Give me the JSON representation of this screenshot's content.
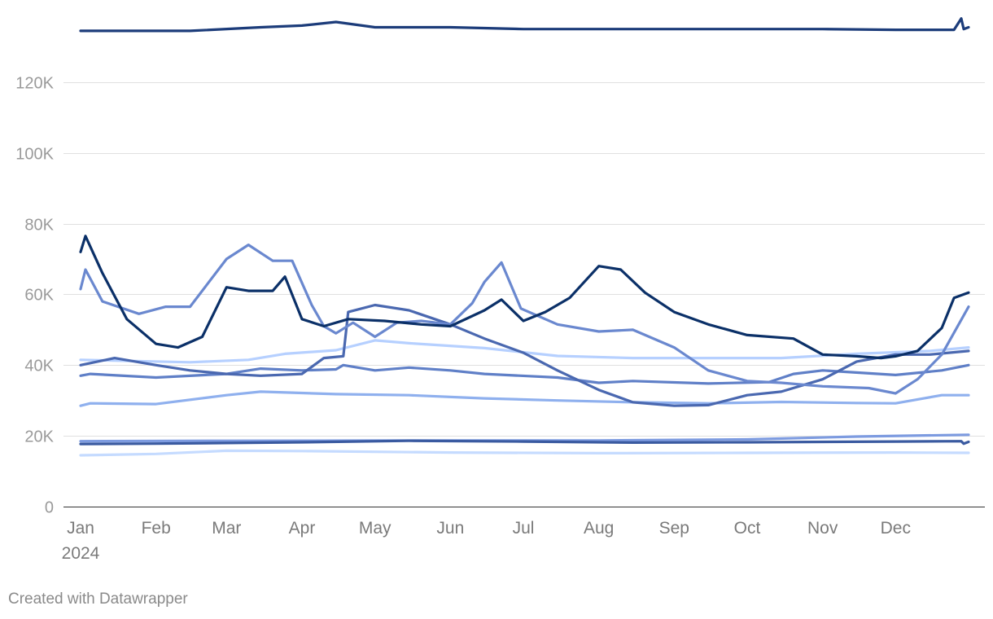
{
  "footer": {
    "credit": "Created with Datawrapper"
  },
  "chart_data": {
    "type": "line",
    "title": "",
    "xlabel": "",
    "ylabel": "",
    "x_range": [
      "2024-01-01",
      "2024-12-31"
    ],
    "ylim": [
      0,
      140000
    ],
    "y_ticks": [
      0,
      20000,
      40000,
      60000,
      80000,
      100000,
      120000
    ],
    "y_tick_labels": [
      "0",
      "20K",
      "40K",
      "60K",
      "80K",
      "100K",
      "120K"
    ],
    "x_ticks": [
      "2024-01-01",
      "2024-02-01",
      "2024-03-01",
      "2024-04-01",
      "2024-05-01",
      "2024-06-01",
      "2024-07-01",
      "2024-08-01",
      "2024-09-01",
      "2024-10-01",
      "2024-11-01",
      "2024-12-01"
    ],
    "x_tick_labels": [
      "Jan",
      "Feb",
      "Mar",
      "Apr",
      "May",
      "Jun",
      "Jul",
      "Aug",
      "Sep",
      "Oct",
      "Nov",
      "Dec"
    ],
    "x_year_label": "2024",
    "grid": true,
    "legend": "none",
    "series": [
      {
        "color": "#8fb0ee",
        "points": [
          [
            "2024-01-01",
            28500
          ],
          [
            "2024-01-05",
            29200
          ],
          [
            "2024-02-01",
            29000
          ],
          [
            "2024-03-01",
            31500
          ],
          [
            "2024-03-15",
            32500
          ],
          [
            "2024-04-15",
            31800
          ],
          [
            "2024-05-15",
            31500
          ],
          [
            "2024-06-15",
            30600
          ],
          [
            "2024-07-15",
            30000
          ],
          [
            "2024-08-15",
            29500
          ],
          [
            "2024-09-15",
            29200
          ],
          [
            "2024-10-15",
            29600
          ],
          [
            "2024-11-15",
            29300
          ],
          [
            "2024-12-01",
            29200
          ],
          [
            "2024-12-20",
            31500
          ],
          [
            "2024-12-31",
            31500
          ]
        ]
      },
      {
        "color": "#c5dbff",
        "points": [
          [
            "2024-01-01",
            14500
          ],
          [
            "2024-02-01",
            14900
          ],
          [
            "2024-03-01",
            15800
          ],
          [
            "2024-04-01",
            15700
          ],
          [
            "2024-06-01",
            15300
          ],
          [
            "2024-08-01",
            15100
          ],
          [
            "2024-10-01",
            15200
          ],
          [
            "2024-12-01",
            15300
          ],
          [
            "2024-12-31",
            15200
          ]
        ]
      },
      {
        "color": "#7d9be0",
        "points": [
          [
            "2024-01-01",
            18500
          ],
          [
            "2024-03-01",
            18600
          ],
          [
            "2024-06-01",
            18700
          ],
          [
            "2024-08-01",
            18700
          ],
          [
            "2024-10-01",
            19000
          ],
          [
            "2024-11-15",
            19800
          ],
          [
            "2024-12-31",
            20300
          ]
        ]
      },
      {
        "color": "#3a5aa0",
        "points": [
          [
            "2024-01-01",
            17700
          ],
          [
            "2024-02-01",
            17800
          ],
          [
            "2024-04-01",
            18200
          ],
          [
            "2024-05-15",
            18600
          ],
          [
            "2024-07-01",
            18400
          ],
          [
            "2024-08-15",
            18100
          ],
          [
            "2024-10-01",
            18200
          ],
          [
            "2024-12-01",
            18400
          ],
          [
            "2024-12-28",
            18500
          ],
          [
            "2024-12-29",
            17800
          ],
          [
            "2024-12-31",
            18300
          ]
        ]
      },
      {
        "color": "#b6d0ff",
        "points": [
          [
            "2024-01-01",
            41500
          ],
          [
            "2024-02-15",
            40800
          ],
          [
            "2024-03-10",
            41500
          ],
          [
            "2024-03-25",
            43200
          ],
          [
            "2024-04-15",
            44200
          ],
          [
            "2024-05-01",
            47000
          ],
          [
            "2024-05-15",
            46200
          ],
          [
            "2024-06-15",
            44800
          ],
          [
            "2024-07-15",
            42600
          ],
          [
            "2024-08-15",
            42000
          ],
          [
            "2024-09-15",
            42000
          ],
          [
            "2024-10-15",
            42000
          ],
          [
            "2024-11-15",
            43200
          ],
          [
            "2024-12-15",
            44000
          ],
          [
            "2024-12-31",
            45000
          ]
        ]
      },
      {
        "color": "#5f7fc7",
        "points": [
          [
            "2024-01-01",
            37000
          ],
          [
            "2024-01-05",
            37500
          ],
          [
            "2024-02-01",
            36500
          ],
          [
            "2024-03-01",
            37500
          ],
          [
            "2024-03-15",
            39000
          ],
          [
            "2024-04-01",
            38500
          ],
          [
            "2024-04-15",
            38800
          ],
          [
            "2024-04-18",
            40000
          ],
          [
            "2024-05-01",
            38500
          ],
          [
            "2024-05-15",
            39300
          ],
          [
            "2024-06-01",
            38500
          ],
          [
            "2024-06-15",
            37500
          ],
          [
            "2024-07-15",
            36500
          ],
          [
            "2024-08-01",
            35000
          ],
          [
            "2024-08-15",
            35500
          ],
          [
            "2024-09-15",
            34800
          ],
          [
            "2024-10-10",
            35200
          ],
          [
            "2024-10-20",
            37500
          ],
          [
            "2024-11-01",
            38500
          ],
          [
            "2024-12-01",
            37200
          ],
          [
            "2024-12-20",
            38500
          ],
          [
            "2024-12-31",
            40000
          ]
        ]
      },
      {
        "color": "#4a68b0",
        "points": [
          [
            "2024-01-01",
            40000
          ],
          [
            "2024-01-15",
            42000
          ],
          [
            "2024-02-01",
            40000
          ],
          [
            "2024-02-15",
            38500
          ],
          [
            "2024-03-01",
            37500
          ],
          [
            "2024-03-15",
            37000
          ],
          [
            "2024-04-01",
            37500
          ],
          [
            "2024-04-10",
            42000
          ],
          [
            "2024-04-18",
            42500
          ],
          [
            "2024-04-20",
            55000
          ],
          [
            "2024-05-01",
            57000
          ],
          [
            "2024-05-15",
            55500
          ],
          [
            "2024-06-01",
            51500
          ],
          [
            "2024-06-15",
            47500
          ],
          [
            "2024-07-01",
            43500
          ],
          [
            "2024-07-15",
            38500
          ],
          [
            "2024-08-01",
            33000
          ],
          [
            "2024-08-15",
            29500
          ],
          [
            "2024-09-01",
            28500
          ],
          [
            "2024-09-15",
            28700
          ],
          [
            "2024-10-01",
            31500
          ],
          [
            "2024-10-15",
            32500
          ],
          [
            "2024-11-01",
            36000
          ],
          [
            "2024-11-15",
            41000
          ],
          [
            "2024-12-01",
            43000
          ],
          [
            "2024-12-15",
            43000
          ],
          [
            "2024-12-31",
            44000
          ]
        ]
      },
      {
        "color": "#6a88cf",
        "points": [
          [
            "2024-01-01",
            61500
          ],
          [
            "2024-01-03",
            67000
          ],
          [
            "2024-01-10",
            58000
          ],
          [
            "2024-01-25",
            54500
          ],
          [
            "2024-02-05",
            56500
          ],
          [
            "2024-02-15",
            56500
          ],
          [
            "2024-03-01",
            70000
          ],
          [
            "2024-03-10",
            74000
          ],
          [
            "2024-03-20",
            69500
          ],
          [
            "2024-03-28",
            69500
          ],
          [
            "2024-04-05",
            57000
          ],
          [
            "2024-04-10",
            51000
          ],
          [
            "2024-04-15",
            49000
          ],
          [
            "2024-04-22",
            52000
          ],
          [
            "2024-05-01",
            48000
          ],
          [
            "2024-05-10",
            52000
          ],
          [
            "2024-05-20",
            52500
          ],
          [
            "2024-06-01",
            51500
          ],
          [
            "2024-06-10",
            57500
          ],
          [
            "2024-06-15",
            63500
          ],
          [
            "2024-06-22",
            69000
          ],
          [
            "2024-06-30",
            56000
          ],
          [
            "2024-07-15",
            51500
          ],
          [
            "2024-08-01",
            49500
          ],
          [
            "2024-08-15",
            50000
          ],
          [
            "2024-09-01",
            45000
          ],
          [
            "2024-09-15",
            38500
          ],
          [
            "2024-10-01",
            35500
          ],
          [
            "2024-10-15",
            35000
          ],
          [
            "2024-11-01",
            34000
          ],
          [
            "2024-11-20",
            33500
          ],
          [
            "2024-12-01",
            32000
          ],
          [
            "2024-12-10",
            36000
          ],
          [
            "2024-12-20",
            43000
          ],
          [
            "2024-12-31",
            56500
          ]
        ]
      },
      {
        "color": "#0b3068",
        "points": [
          [
            "2024-01-01",
            72000
          ],
          [
            "2024-01-03",
            76500
          ],
          [
            "2024-01-10",
            66000
          ],
          [
            "2024-01-20",
            53000
          ],
          [
            "2024-02-01",
            46000
          ],
          [
            "2024-02-10",
            45000
          ],
          [
            "2024-02-20",
            48000
          ],
          [
            "2024-03-01",
            62000
          ],
          [
            "2024-03-10",
            61000
          ],
          [
            "2024-03-20",
            61000
          ],
          [
            "2024-03-25",
            65000
          ],
          [
            "2024-04-01",
            53000
          ],
          [
            "2024-04-10",
            51000
          ],
          [
            "2024-04-20",
            53000
          ],
          [
            "2024-05-05",
            52500
          ],
          [
            "2024-05-20",
            51500
          ],
          [
            "2024-06-01",
            51000
          ],
          [
            "2024-06-15",
            55500
          ],
          [
            "2024-06-22",
            58500
          ],
          [
            "2024-07-01",
            52500
          ],
          [
            "2024-07-10",
            55000
          ],
          [
            "2024-07-20",
            59000
          ],
          [
            "2024-08-01",
            68000
          ],
          [
            "2024-08-10",
            67000
          ],
          [
            "2024-08-20",
            60500
          ],
          [
            "2024-09-01",
            55000
          ],
          [
            "2024-09-15",
            51500
          ],
          [
            "2024-10-01",
            48500
          ],
          [
            "2024-10-20",
            47500
          ],
          [
            "2024-11-01",
            43000
          ],
          [
            "2024-11-15",
            42500
          ],
          [
            "2024-11-25",
            42000
          ],
          [
            "2024-12-01",
            42500
          ],
          [
            "2024-12-10",
            44000
          ],
          [
            "2024-12-20",
            50500
          ],
          [
            "2024-12-25",
            59000
          ],
          [
            "2024-12-31",
            60500
          ]
        ]
      },
      {
        "color": "#1c3c7a",
        "points": [
          [
            "2024-01-01",
            134500
          ],
          [
            "2024-01-15",
            134500
          ],
          [
            "2024-02-15",
            134500
          ],
          [
            "2024-03-15",
            135500
          ],
          [
            "2024-04-01",
            136000
          ],
          [
            "2024-04-15",
            137000
          ],
          [
            "2024-05-01",
            135500
          ],
          [
            "2024-06-01",
            135500
          ],
          [
            "2024-07-01",
            135000
          ],
          [
            "2024-08-01",
            135000
          ],
          [
            "2024-09-01",
            135000
          ],
          [
            "2024-10-01",
            135000
          ],
          [
            "2024-11-01",
            135000
          ],
          [
            "2024-12-01",
            134800
          ],
          [
            "2024-12-25",
            134800
          ],
          [
            "2024-12-28",
            138000
          ],
          [
            "2024-12-29",
            135000
          ],
          [
            "2024-12-31",
            135500
          ]
        ]
      }
    ]
  }
}
